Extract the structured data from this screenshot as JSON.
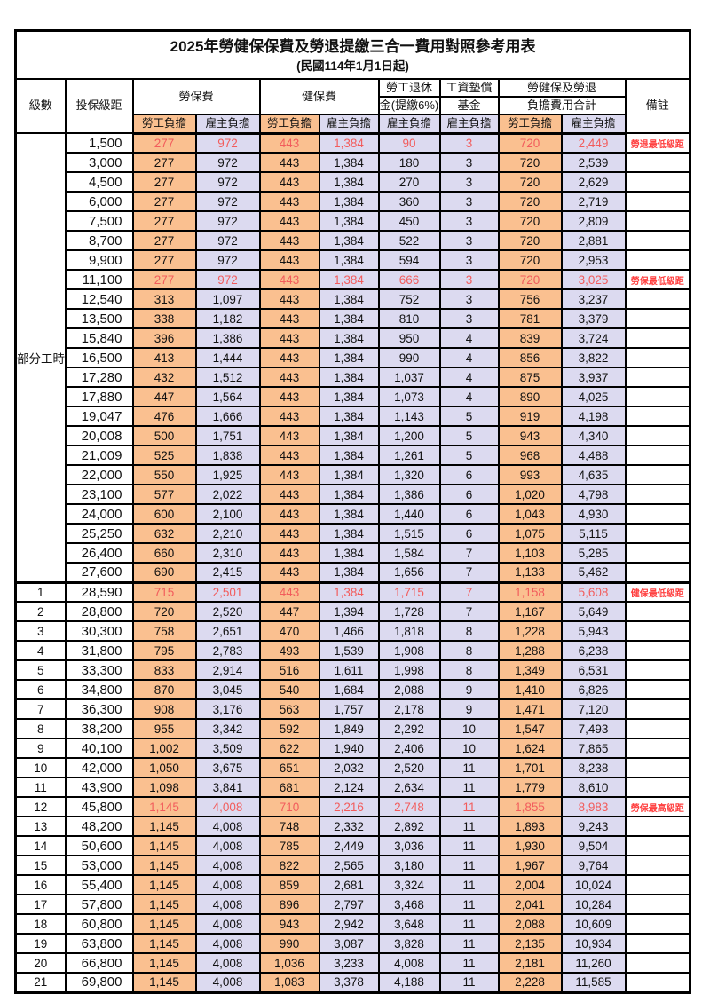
{
  "title": "2025年勞健保保費及勞退提繳三合一費用對照參考用表",
  "subtitle": "(民國114年1月1日起)",
  "colors": {
    "employee_bg": "#FAC090",
    "employer_bg": "#DCDAF0",
    "highlight_text": "#F25C5C",
    "remark_text": "#FF4040",
    "grid": "#000000"
  },
  "header": {
    "level": "級數",
    "bracket": "投保級距",
    "labor_insurance": "勞保費",
    "health_insurance": "健保費",
    "pension_line1": "勞工退休",
    "pension_line2": "金(提繳6%)",
    "wage_fund_line1": "工資墊償",
    "wage_fund_line2": "基金",
    "total_line1": "勞健保及勞退",
    "total_line2": "負擔費用合計",
    "remark": "備註",
    "employee_share": "勞工負擔",
    "employer_share": "雇主負擔"
  },
  "part_time": {
    "label": "部分工時",
    "rowspan": 23
  },
  "rows": [
    {
      "level": "",
      "bracket": "1,500",
      "cells": [
        "277",
        "972",
        "443",
        "1,384",
        "90",
        "3",
        "720",
        "2,449"
      ],
      "remark": "勞退最低級距",
      "red": true
    },
    {
      "level": "",
      "bracket": "3,000",
      "cells": [
        "277",
        "972",
        "443",
        "1,384",
        "180",
        "3",
        "720",
        "2,539"
      ],
      "remark": "",
      "red": false
    },
    {
      "level": "",
      "bracket": "4,500",
      "cells": [
        "277",
        "972",
        "443",
        "1,384",
        "270",
        "3",
        "720",
        "2,629"
      ],
      "remark": "",
      "red": false
    },
    {
      "level": "",
      "bracket": "6,000",
      "cells": [
        "277",
        "972",
        "443",
        "1,384",
        "360",
        "3",
        "720",
        "2,719"
      ],
      "remark": "",
      "red": false
    },
    {
      "level": "",
      "bracket": "7,500",
      "cells": [
        "277",
        "972",
        "443",
        "1,384",
        "450",
        "3",
        "720",
        "2,809"
      ],
      "remark": "",
      "red": false
    },
    {
      "level": "",
      "bracket": "8,700",
      "cells": [
        "277",
        "972",
        "443",
        "1,384",
        "522",
        "3",
        "720",
        "2,881"
      ],
      "remark": "",
      "red": false
    },
    {
      "level": "",
      "bracket": "9,900",
      "cells": [
        "277",
        "972",
        "443",
        "1,384",
        "594",
        "3",
        "720",
        "2,953"
      ],
      "remark": "",
      "red": false
    },
    {
      "level": "",
      "bracket": "11,100",
      "cells": [
        "277",
        "972",
        "443",
        "1,384",
        "666",
        "3",
        "720",
        "3,025"
      ],
      "remark": "勞保最低級距",
      "red": true
    },
    {
      "level": "",
      "bracket": "12,540",
      "cells": [
        "313",
        "1,097",
        "443",
        "1,384",
        "752",
        "3",
        "756",
        "3,237"
      ],
      "remark": "",
      "red": false
    },
    {
      "level": "",
      "bracket": "13,500",
      "cells": [
        "338",
        "1,182",
        "443",
        "1,384",
        "810",
        "3",
        "781",
        "3,379"
      ],
      "remark": "",
      "red": false
    },
    {
      "level": "",
      "bracket": "15,840",
      "cells": [
        "396",
        "1,386",
        "443",
        "1,384",
        "950",
        "4",
        "839",
        "3,724"
      ],
      "remark": "",
      "red": false
    },
    {
      "level": "",
      "bracket": "16,500",
      "cells": [
        "413",
        "1,444",
        "443",
        "1,384",
        "990",
        "4",
        "856",
        "3,822"
      ],
      "remark": "",
      "red": false
    },
    {
      "level": "",
      "bracket": "17,280",
      "cells": [
        "432",
        "1,512",
        "443",
        "1,384",
        "1,037",
        "4",
        "875",
        "3,937"
      ],
      "remark": "",
      "red": false
    },
    {
      "level": "",
      "bracket": "17,880",
      "cells": [
        "447",
        "1,564",
        "443",
        "1,384",
        "1,073",
        "4",
        "890",
        "4,025"
      ],
      "remark": "",
      "red": false
    },
    {
      "level": "",
      "bracket": "19,047",
      "cells": [
        "476",
        "1,666",
        "443",
        "1,384",
        "1,143",
        "5",
        "919",
        "4,198"
      ],
      "remark": "",
      "red": false
    },
    {
      "level": "",
      "bracket": "20,008",
      "cells": [
        "500",
        "1,751",
        "443",
        "1,384",
        "1,200",
        "5",
        "943",
        "4,340"
      ],
      "remark": "",
      "red": false
    },
    {
      "level": "",
      "bracket": "21,009",
      "cells": [
        "525",
        "1,838",
        "443",
        "1,384",
        "1,261",
        "5",
        "968",
        "4,488"
      ],
      "remark": "",
      "red": false
    },
    {
      "level": "",
      "bracket": "22,000",
      "cells": [
        "550",
        "1,925",
        "443",
        "1,384",
        "1,320",
        "6",
        "993",
        "4,635"
      ],
      "remark": "",
      "red": false
    },
    {
      "level": "",
      "bracket": "23,100",
      "cells": [
        "577",
        "2,022",
        "443",
        "1,384",
        "1,386",
        "6",
        "1,020",
        "4,798"
      ],
      "remark": "",
      "red": false
    },
    {
      "level": "",
      "bracket": "24,000",
      "cells": [
        "600",
        "2,100",
        "443",
        "1,384",
        "1,440",
        "6",
        "1,043",
        "4,930"
      ],
      "remark": "",
      "red": false
    },
    {
      "level": "",
      "bracket": "25,250",
      "cells": [
        "632",
        "2,210",
        "443",
        "1,384",
        "1,515",
        "6",
        "1,075",
        "5,115"
      ],
      "remark": "",
      "red": false
    },
    {
      "level": "",
      "bracket": "26,400",
      "cells": [
        "660",
        "2,310",
        "443",
        "1,384",
        "1,584",
        "7",
        "1,103",
        "5,285"
      ],
      "remark": "",
      "red": false
    },
    {
      "level": "",
      "bracket": "27,600",
      "cells": [
        "690",
        "2,415",
        "443",
        "1,384",
        "1,656",
        "7",
        "1,133",
        "5,462"
      ],
      "remark": "",
      "red": false
    },
    {
      "level": "1",
      "bracket": "28,590",
      "cells": [
        "715",
        "2,501",
        "443",
        "1,384",
        "1,715",
        "7",
        "1,158",
        "5,608"
      ],
      "remark": "健保最低級距",
      "red": true,
      "section_start": true
    },
    {
      "level": "2",
      "bracket": "28,800",
      "cells": [
        "720",
        "2,520",
        "447",
        "1,394",
        "1,728",
        "7",
        "1,167",
        "5,649"
      ],
      "remark": "",
      "red": false
    },
    {
      "level": "3",
      "bracket": "30,300",
      "cells": [
        "758",
        "2,651",
        "470",
        "1,466",
        "1,818",
        "8",
        "1,228",
        "5,943"
      ],
      "remark": "",
      "red": false
    },
    {
      "level": "4",
      "bracket": "31,800",
      "cells": [
        "795",
        "2,783",
        "493",
        "1,539",
        "1,908",
        "8",
        "1,288",
        "6,238"
      ],
      "remark": "",
      "red": false
    },
    {
      "level": "5",
      "bracket": "33,300",
      "cells": [
        "833",
        "2,914",
        "516",
        "1,611",
        "1,998",
        "8",
        "1,349",
        "6,531"
      ],
      "remark": "",
      "red": false
    },
    {
      "level": "6",
      "bracket": "34,800",
      "cells": [
        "870",
        "3,045",
        "540",
        "1,684",
        "2,088",
        "9",
        "1,410",
        "6,826"
      ],
      "remark": "",
      "red": false
    },
    {
      "level": "7",
      "bracket": "36,300",
      "cells": [
        "908",
        "3,176",
        "563",
        "1,757",
        "2,178",
        "9",
        "1,471",
        "7,120"
      ],
      "remark": "",
      "red": false
    },
    {
      "level": "8",
      "bracket": "38,200",
      "cells": [
        "955",
        "3,342",
        "592",
        "1,849",
        "2,292",
        "10",
        "1,547",
        "7,493"
      ],
      "remark": "",
      "red": false
    },
    {
      "level": "9",
      "bracket": "40,100",
      "cells": [
        "1,002",
        "3,509",
        "622",
        "1,940",
        "2,406",
        "10",
        "1,624",
        "7,865"
      ],
      "remark": "",
      "red": false
    },
    {
      "level": "10",
      "bracket": "42,000",
      "cells": [
        "1,050",
        "3,675",
        "651",
        "2,032",
        "2,520",
        "11",
        "1,701",
        "8,238"
      ],
      "remark": "",
      "red": false
    },
    {
      "level": "11",
      "bracket": "43,900",
      "cells": [
        "1,098",
        "3,841",
        "681",
        "2,124",
        "2,634",
        "11",
        "1,779",
        "8,610"
      ],
      "remark": "",
      "red": false
    },
    {
      "level": "12",
      "bracket": "45,800",
      "cells": [
        "1,145",
        "4,008",
        "710",
        "2,216",
        "2,748",
        "11",
        "1,855",
        "8,983"
      ],
      "remark": "勞保最高級距",
      "red": true
    },
    {
      "level": "13",
      "bracket": "48,200",
      "cells": [
        "1,145",
        "4,008",
        "748",
        "2,332",
        "2,892",
        "11",
        "1,893",
        "9,243"
      ],
      "remark": "",
      "red": false
    },
    {
      "level": "14",
      "bracket": "50,600",
      "cells": [
        "1,145",
        "4,008",
        "785",
        "2,449",
        "3,036",
        "11",
        "1,930",
        "9,504"
      ],
      "remark": "",
      "red": false
    },
    {
      "level": "15",
      "bracket": "53,000",
      "cells": [
        "1,145",
        "4,008",
        "822",
        "2,565",
        "3,180",
        "11",
        "1,967",
        "9,764"
      ],
      "remark": "",
      "red": false
    },
    {
      "level": "16",
      "bracket": "55,400",
      "cells": [
        "1,145",
        "4,008",
        "859",
        "2,681",
        "3,324",
        "11",
        "2,004",
        "10,024"
      ],
      "remark": "",
      "red": false
    },
    {
      "level": "17",
      "bracket": "57,800",
      "cells": [
        "1,145",
        "4,008",
        "896",
        "2,797",
        "3,468",
        "11",
        "2,041",
        "10,284"
      ],
      "remark": "",
      "red": false
    },
    {
      "level": "18",
      "bracket": "60,800",
      "cells": [
        "1,145",
        "4,008",
        "943",
        "2,942",
        "3,648",
        "11",
        "2,088",
        "10,609"
      ],
      "remark": "",
      "red": false
    },
    {
      "level": "19",
      "bracket": "63,800",
      "cells": [
        "1,145",
        "4,008",
        "990",
        "3,087",
        "3,828",
        "11",
        "2,135",
        "10,934"
      ],
      "remark": "",
      "red": false
    },
    {
      "level": "20",
      "bracket": "66,800",
      "cells": [
        "1,145",
        "4,008",
        "1,036",
        "3,233",
        "4,008",
        "11",
        "2,181",
        "11,260"
      ],
      "remark": "",
      "red": false
    },
    {
      "level": "21",
      "bracket": "69,800",
      "cells": [
        "1,145",
        "4,008",
        "1,083",
        "3,378",
        "4,188",
        "11",
        "2,228",
        "11,585"
      ],
      "remark": "",
      "red": false
    }
  ]
}
